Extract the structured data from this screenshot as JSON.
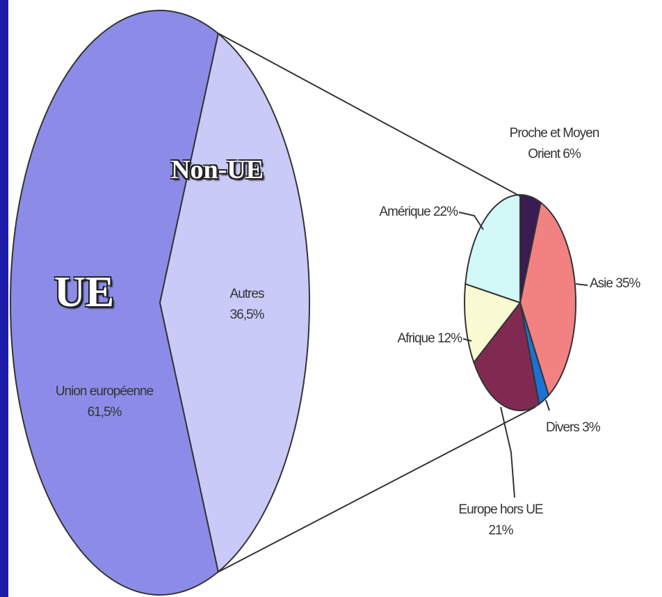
{
  "chart_data": [
    {
      "type": "pie",
      "title": "UE",
      "subtitle": "Non-UE",
      "categories": [
        "Union européenne",
        "Autres"
      ],
      "values": [
        61.5,
        36.5
      ],
      "value_labels": [
        "61,5%",
        "36,5%"
      ],
      "colors": [
        "#8c8ce8",
        "#cacaf8"
      ]
    },
    {
      "type": "pie",
      "categories": [
        "Proche et Moyen Orient",
        "Asie",
        "Divers",
        "Europe hors UE",
        "Afrique",
        "Amérique"
      ],
      "values": [
        6,
        35,
        3,
        21,
        12,
        22
      ],
      "value_labels": [
        "6%",
        "35%",
        "3%",
        "21%",
        "12%",
        "22%"
      ],
      "colors": [
        "#3c1a52",
        "#f28282",
        "#1a72d2",
        "#802a52",
        "#fafad2",
        "#d2f8f8"
      ]
    }
  ]
}
